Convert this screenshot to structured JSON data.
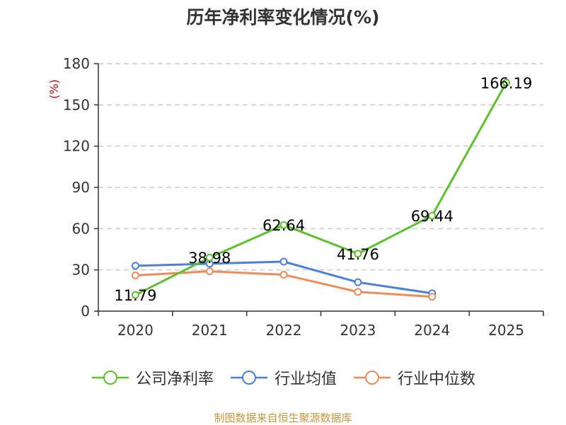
{
  "chart_data": {
    "type": "line",
    "title": "历年净利率变化情况(%)",
    "ylabel": "(%)",
    "xlabel": "",
    "categories": [
      "2020",
      "2021",
      "2022",
      "2023",
      "2024",
      "2025"
    ],
    "ylim": [
      0,
      180
    ],
    "yticks": [
      0,
      30,
      60,
      90,
      120,
      150,
      180
    ],
    "grid": true,
    "legend_position": "bottom",
    "series": [
      {
        "name": "公司净利率",
        "color": "#5cc12b",
        "values": [
          11.79,
          38.98,
          62.64,
          41.76,
          69.44,
          166.19
        ],
        "labels": [
          "11.79",
          "38.98",
          "62.64",
          "41.76",
          "69.44",
          "166.19"
        ]
      },
      {
        "name": "行业均值",
        "color": "#4a7fdc",
        "values": [
          33,
          34.5,
          36,
          21,
          13,
          null
        ]
      },
      {
        "name": "行业中位数",
        "color": "#f08c5a",
        "values": [
          26,
          29,
          26.5,
          14,
          10.5,
          null
        ]
      }
    ]
  },
  "source": "制图数据来自恒生聚源数据库"
}
